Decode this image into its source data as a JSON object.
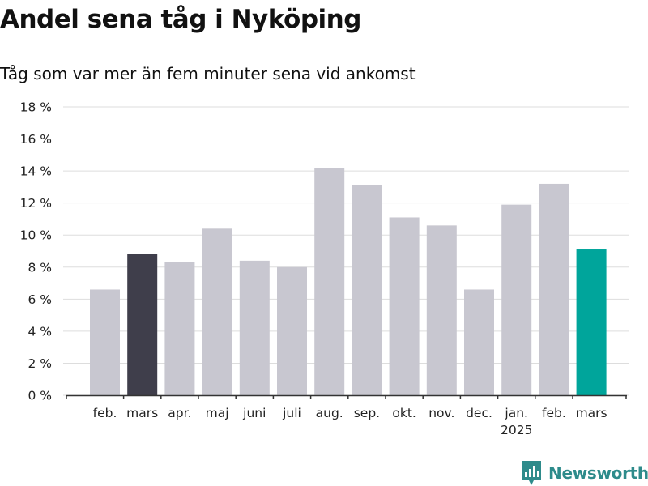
{
  "title": "Andel sena tåg i Nyköping",
  "subtitle": "Tåg som var mer än fem minuter sena vid ankomst",
  "brand": {
    "name": "Newsworthy",
    "icon": "newsworthy-logo-icon",
    "color": "#2e8b8b"
  },
  "chart_data": {
    "type": "bar",
    "categories": [
      "feb.",
      "mars",
      "apr.",
      "maj",
      "juni",
      "juli",
      "aug.",
      "sep.",
      "okt.",
      "nov.",
      "dec.",
      "jan.",
      "feb.",
      "mars"
    ],
    "year_labels": [
      {
        "category_index": 11,
        "label": "2025"
      }
    ],
    "values": [
      6.6,
      8.8,
      8.3,
      10.4,
      8.4,
      8.0,
      14.2,
      13.1,
      11.1,
      10.6,
      6.6,
      11.9,
      13.2,
      9.1
    ],
    "ylim": [
      0,
      18
    ],
    "yticks": [
      0,
      2,
      4,
      6,
      8,
      10,
      12,
      14,
      16,
      18
    ],
    "ytick_labels": [
      "0 %",
      "2 %",
      "4 %",
      "6 %",
      "8 %",
      "10 %",
      "12 %",
      "14 %",
      "16 %",
      "18 %"
    ],
    "xlabel": "",
    "ylabel": "",
    "grid": true,
    "colors": {
      "default": "#c8c7d0",
      "year_ago": "#3f3e4b",
      "latest": "#00a59b",
      "grid": "#dddddd",
      "axis": "#333333"
    },
    "highlight": {
      "year_ago_index": 1,
      "latest_index": 13
    }
  }
}
